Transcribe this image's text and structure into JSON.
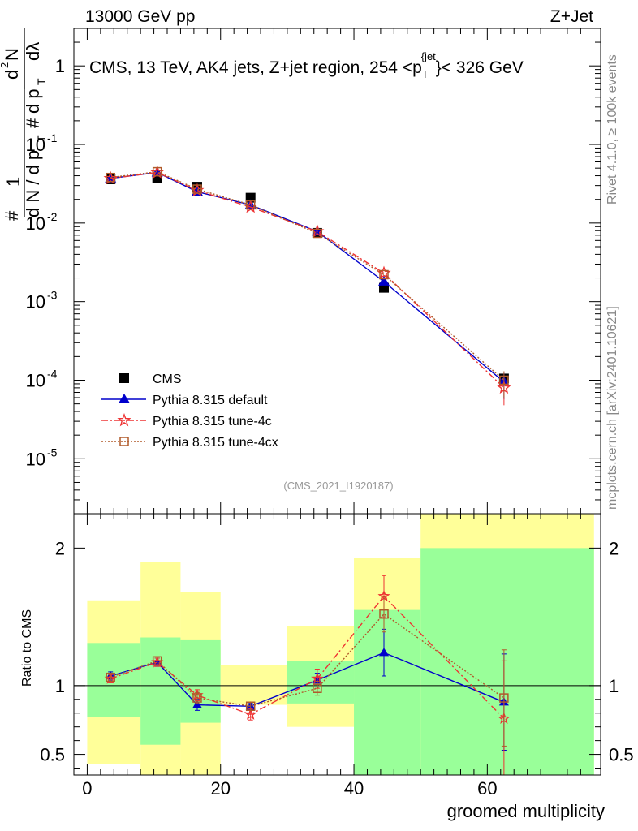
{
  "header": {
    "left": "13000 GeV pp",
    "right": "Z+Jet"
  },
  "side_labels": {
    "rivet": "Rivet 4.1.0, ≥ 100k events",
    "mcplots": "mcplots.cern.ch [arXiv:2401.10621]"
  },
  "chart_data": [
    {
      "type": "scatter",
      "title": "CMS, 13 TeV, AK4 jets, Z+jet region, 254 <p_T^{jet}< 326 GeV",
      "title_parts": {
        "main": "CMS, 13 TeV, AK4 jets, Z+jet region, 254 <p",
        "sub": "T",
        "sup": "{jet",
        "tail": "}< 326 GeV"
      },
      "ylabel": "1/dN/dp_T # d^2N/dp_T dλ",
      "yscale": "log",
      "ylim": [
        2e-06,
        3
      ],
      "xlim": [
        -2,
        77
      ],
      "yticks": [
        {
          "v": 1,
          "label": "1"
        },
        {
          "v": 0.1,
          "base": "10",
          "exp": "-1"
        },
        {
          "v": 0.01,
          "base": "10",
          "exp": "-2"
        },
        {
          "v": 0.001,
          "base": "10",
          "exp": "-3"
        },
        {
          "v": 0.0001,
          "base": "10",
          "exp": "-4"
        },
        {
          "v": 1e-05,
          "base": "10",
          "exp": "-5"
        }
      ],
      "watermark": "(CMS_2021_I1920187)",
      "series": [
        {
          "name": "CMS",
          "color": "#000000",
          "marker": "square",
          "x": [
            3.5,
            10.5,
            16.5,
            24.5,
            34.5,
            44.5,
            62.5
          ],
          "y": [
            0.036,
            0.037,
            0.029,
            0.021,
            0.0075,
            0.0015,
            0.000105
          ]
        },
        {
          "name": "Pythia 8.315 default",
          "color": "#0000cc",
          "marker": "triangle",
          "line": "solid",
          "x": [
            3.5,
            10.5,
            16.5,
            24.5,
            34.5,
            44.5,
            62.5
          ],
          "y": [
            0.037,
            0.044,
            0.025,
            0.017,
            0.0078,
            0.0018,
            9.5e-05
          ]
        },
        {
          "name": "Pythia 8.315 tune-4c",
          "color": "#ee3333",
          "marker": "star",
          "line": "dashdot",
          "x": [
            3.5,
            10.5,
            16.5,
            24.5,
            34.5,
            44.5,
            62.5
          ],
          "y": [
            0.037,
            0.044,
            0.026,
            0.016,
            0.0078,
            0.0023,
            8e-05
          ]
        },
        {
          "name": "Pythia 8.315 tune-4cx",
          "color": "#b05a2a",
          "marker": "open-square",
          "line": "dotted",
          "x": [
            3.5,
            10.5,
            16.5,
            24.5,
            34.5,
            44.5,
            62.5
          ],
          "y": [
            0.038,
            0.045,
            0.027,
            0.017,
            0.0074,
            0.0022,
            0.0001
          ]
        }
      ]
    },
    {
      "type": "scatter",
      "title": "",
      "xlabel": "groomed multiplicity",
      "ylabel": "Ratio to CMS",
      "ylim": [
        0.35,
        2.25
      ],
      "xlim": [
        -2,
        77
      ],
      "xticks": [
        0,
        20,
        40,
        60
      ],
      "yticks": [
        0.5,
        1,
        2
      ],
      "bands": {
        "bins": [
          [
            0,
            8
          ],
          [
            8,
            14
          ],
          [
            14,
            20
          ],
          [
            20,
            30
          ],
          [
            30,
            40
          ],
          [
            40,
            50
          ],
          [
            50,
            76
          ]
        ],
        "green_low": [
          0.77,
          0.57,
          0.73,
          1.0,
          0.87,
          0.35,
          0.35
        ],
        "green_high": [
          1.31,
          1.35,
          1.33,
          1.0,
          1.18,
          1.55,
          2.0
        ],
        "yellow_low": [
          0.43,
          0.35,
          0.35,
          0.86,
          0.7,
          0.55,
          0.35
        ],
        "yellow_high": [
          1.62,
          1.9,
          1.68,
          1.15,
          1.43,
          1.93,
          2.25
        ]
      },
      "series": [
        {
          "name": "Pythia 8.315 default",
          "color": "#0000cc",
          "marker": "triangle",
          "line": "solid",
          "x": [
            3.5,
            10.5,
            16.5,
            24.5,
            34.5,
            44.5,
            62.5
          ],
          "y": [
            1.07,
            1.17,
            0.86,
            0.85,
            1.04,
            1.24,
            0.88
          ],
          "err": [
            0.03,
            0.03,
            0.04,
            0.02,
            0.05,
            0.17,
            0.35
          ]
        },
        {
          "name": "Pythia 8.315 tune-4c",
          "color": "#ee3333",
          "marker": "star",
          "line": "dashdot",
          "x": [
            3.5,
            10.5,
            16.5,
            24.5,
            34.5,
            44.5,
            62.5
          ],
          "y": [
            1.05,
            1.17,
            0.93,
            0.79,
            1.05,
            1.65,
            0.76
          ],
          "err": [
            0.03,
            0.03,
            0.04,
            0.04,
            0.07,
            0.15,
            0.42
          ]
        },
        {
          "name": "Pythia 8.315 tune-4cx",
          "color": "#b05a2a",
          "marker": "open-square",
          "line": "dotted",
          "x": [
            3.5,
            10.5,
            16.5,
            24.5,
            34.5,
            44.5,
            62.5
          ],
          "y": [
            1.06,
            1.18,
            0.91,
            0.85,
            0.98,
            1.52,
            0.91
          ],
          "err": [
            0.03,
            0.03,
            0.04,
            0.03,
            0.05,
            0.13,
            0.35
          ]
        }
      ]
    }
  ]
}
